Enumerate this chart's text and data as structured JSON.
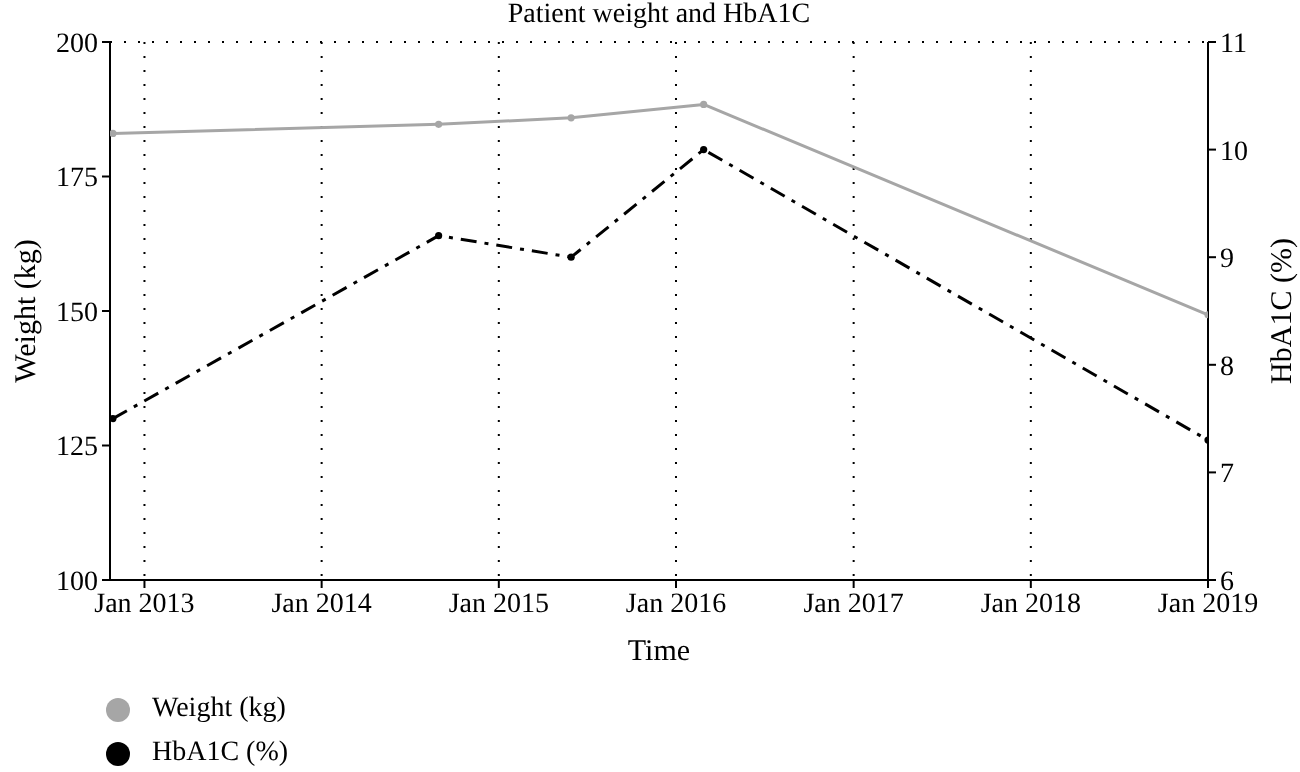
{
  "chart_data": {
    "type": "line",
    "title": "Patient weight and HbA1C",
    "xlabel": "Time",
    "ylabel": "Weight (kg)",
    "y2label": "HbA1C (%)",
    "x": [
      "2012-10-28",
      "2014-08-30",
      "2015-05-30",
      "2016-02-27",
      "2019-01-01"
    ],
    "series": [
      {
        "name": "Weight (kg)",
        "color": "#a6a6a6",
        "values": [
          183,
          184.7,
          185.9,
          188.4,
          149.3
        ],
        "line_style": "solid"
      },
      {
        "name": "HbA1C (%)",
        "color": "#000000",
        "values": [
          7.5,
          9.2,
          9.0,
          10.0,
          7.3
        ],
        "axis": "y2",
        "line_style": "dashed"
      }
    ],
    "xlim": [
      "2012-10-22",
      "2019-01-01"
    ],
    "xticks": [
      {
        "value": "2013-01-01",
        "label": "Jan 2013"
      },
      {
        "value": "2014-01-01",
        "label": "Jan 2014"
      },
      {
        "value": "2015-01-01",
        "label": "Jan 2015"
      },
      {
        "value": "2016-01-01",
        "label": "Jan 2016"
      },
      {
        "value": "2017-01-01",
        "label": "Jan 2017"
      },
      {
        "value": "2018-01-01",
        "label": "Jan 2018"
      },
      {
        "value": "2019-01-01",
        "label": "Jan 2019"
      }
    ],
    "ylim": [
      100,
      200
    ],
    "yticks": [
      100,
      125,
      150,
      175,
      200
    ],
    "y2lim": [
      6,
      11
    ],
    "y2ticks": [
      6,
      7,
      8,
      9,
      10,
      11
    ],
    "grid": true,
    "legend": "bottom left",
    "marker": "circle"
  }
}
